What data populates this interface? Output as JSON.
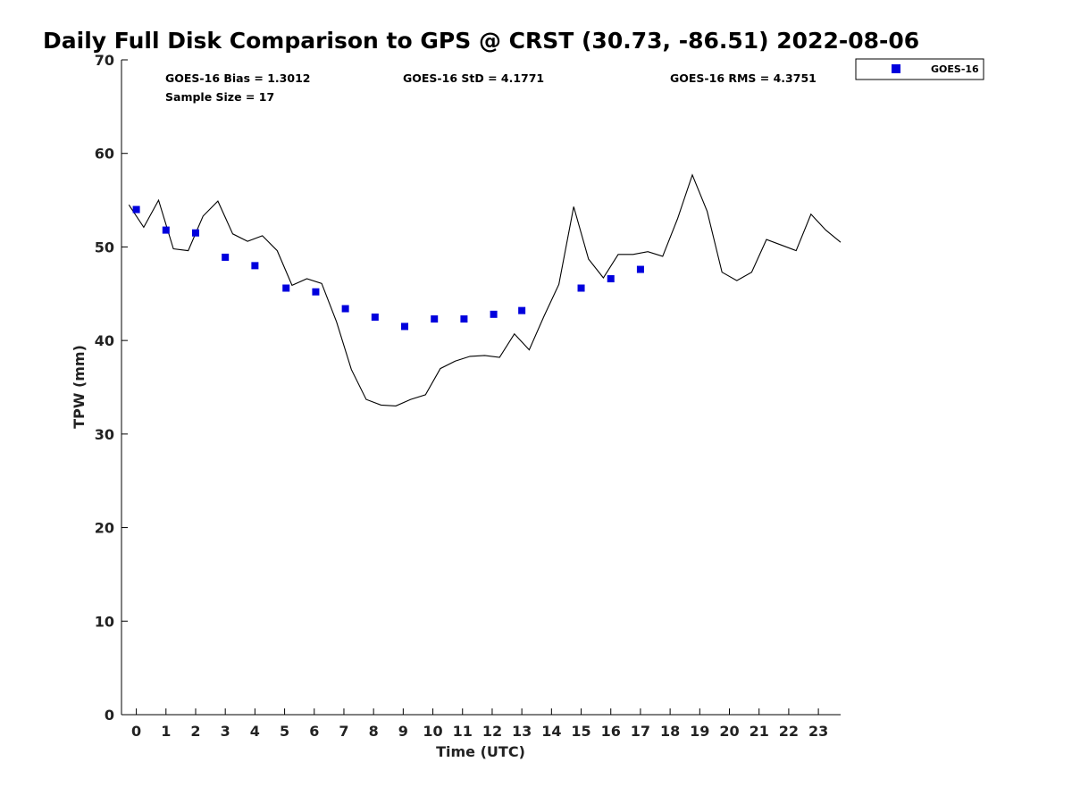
{
  "chart_data": {
    "type": "scatter",
    "title": "Daily Full Disk Comparison to GPS @ CRST (30.73, -86.51) 2022-08-06",
    "xlabel": "Time (UTC)",
    "ylabel": "TPW (mm)",
    "xlim": [
      -0.5,
      23.75
    ],
    "ylim": [
      0,
      70
    ],
    "xticks": [
      0,
      1,
      2,
      3,
      4,
      5,
      6,
      7,
      8,
      9,
      10,
      11,
      12,
      13,
      14,
      15,
      16,
      17,
      18,
      19,
      20,
      21,
      22,
      23
    ],
    "yticks": [
      0,
      10,
      20,
      30,
      40,
      50,
      60,
      70
    ],
    "stats": {
      "bias": "GOES-16 Bias = 1.3012",
      "std": "GOES-16 StD = 4.1771",
      "rms": "GOES-16 RMS = 4.3751",
      "sample_size": "Sample Size = 17"
    },
    "legend": {
      "location": "outside-top-right",
      "label": "GOES-16",
      "color": "#0000dd"
    },
    "series": [
      {
        "name": "GOES-16",
        "kind": "scatter",
        "color": "#0000dd",
        "x": [
          0.0,
          1.0,
          2.0,
          3.0,
          4.0,
          5.05,
          6.05,
          7.05,
          8.05,
          9.05,
          10.05,
          11.05,
          12.05,
          13.0,
          15.0,
          16.0,
          17.0
        ],
        "y": [
          54.0,
          51.8,
          51.5,
          48.9,
          48.0,
          45.6,
          45.2,
          43.4,
          42.5,
          41.5,
          42.3,
          42.3,
          42.8,
          43.2,
          45.6,
          46.6,
          47.6
        ]
      },
      {
        "name": "GPS",
        "kind": "line",
        "color": "#000000",
        "x": [
          -0.25,
          0.25,
          0.75,
          1.25,
          1.75,
          2.25,
          2.75,
          3.25,
          3.75,
          4.25,
          4.75,
          5.25,
          5.75,
          6.25,
          6.75,
          7.25,
          7.75,
          8.25,
          8.75,
          9.25,
          9.75,
          10.25,
          10.75,
          11.25,
          11.75,
          12.25,
          12.75,
          13.25,
          13.75,
          14.25,
          14.75,
          15.25,
          15.75,
          16.25,
          16.75,
          17.25,
          17.75,
          18.25,
          18.75,
          19.25,
          19.75,
          20.25,
          20.75,
          21.25,
          21.75,
          22.25,
          22.75,
          23.25,
          23.75
        ],
        "y": [
          54.5,
          52.1,
          55.0,
          49.8,
          49.6,
          53.3,
          54.9,
          51.4,
          50.6,
          51.2,
          49.6,
          45.9,
          46.6,
          46.1,
          42.0,
          36.9,
          33.7,
          33.1,
          33.0,
          33.7,
          34.2,
          37.0,
          37.8,
          38.3,
          38.4,
          38.2,
          40.7,
          39.0,
          42.6,
          46.0,
          54.3,
          48.7,
          46.7,
          49.2,
          49.2,
          49.5,
          49.0,
          53.0,
          57.7,
          53.8,
          47.3,
          46.4,
          47.3,
          50.8,
          50.2,
          49.6,
          53.5,
          51.8,
          50.5
        ]
      }
    ]
  }
}
